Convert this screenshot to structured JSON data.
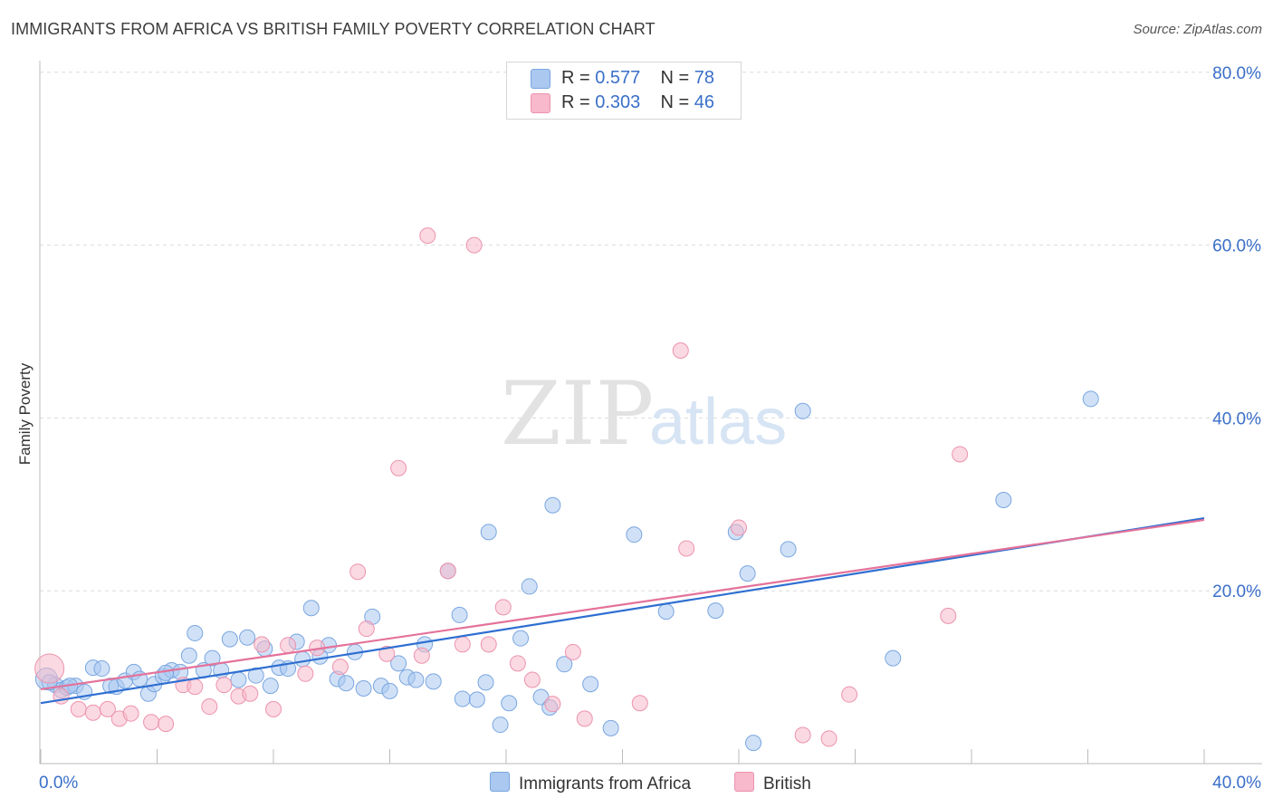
{
  "header": {
    "title": "IMMIGRANTS FROM AFRICA VS BRITISH FAMILY POVERTY CORRELATION CHART",
    "source": "Source: ZipAtlas.com"
  },
  "watermark": {
    "part1": "ZIP",
    "part2": "atlas"
  },
  "legend": {
    "rows": [
      {
        "r_label": "R = ",
        "r_value": "0.577",
        "n_label": "N = ",
        "n_value": "78"
      },
      {
        "r_label": "R = ",
        "r_value": "0.303",
        "n_label": "N = ",
        "n_value": "46"
      }
    ]
  },
  "bottom_legend": {
    "series1": "Immigrants from Africa",
    "series2": "British"
  },
  "colors": {
    "blue_fill": "#aac8f0",
    "blue_stroke": "#7aa6e0",
    "blue_line": "#2f6fd1",
    "pink_fill": "#f7b9cb",
    "pink_stroke": "#ec93ad",
    "pink_line": "#e4729a",
    "tick_text": "#3a6fc9",
    "grid": "#dcdcdc"
  },
  "chart_data": {
    "type": "scatter",
    "title": "IMMIGRANTS FROM AFRICA VS BRITISH FAMILY POVERTY CORRELATION CHART",
    "xlabel": "",
    "ylabel": "Family Poverty",
    "xlim": [
      0,
      40
    ],
    "ylim": [
      0,
      83
    ],
    "x_tick_labels": [
      {
        "value": 0,
        "label": "0.0%"
      },
      {
        "value": 40,
        "label": "40.0%"
      }
    ],
    "y_tick_labels": [
      {
        "value": 20,
        "label": "20.0%"
      },
      {
        "value": 40,
        "label": "40.0%"
      },
      {
        "value": 60,
        "label": "60.0%"
      },
      {
        "value": 80,
        "label": "80.0%"
      }
    ],
    "grid": true,
    "legend_position": "top-center",
    "series": [
      {
        "name": "Immigrants from Africa",
        "R": 0.577,
        "N": 78,
        "trend": [
          [
            0,
            7.0
          ],
          [
            40,
            28.4
          ]
        ],
        "points": [
          [
            0.2,
            9.8
          ],
          [
            0.5,
            9.1
          ],
          [
            0.7,
            8.5
          ],
          [
            0.9,
            8.8
          ],
          [
            1.2,
            9.0
          ],
          [
            1.5,
            8.3
          ],
          [
            1.8,
            11.1
          ],
          [
            2.1,
            11.0
          ],
          [
            2.4,
            9.0
          ],
          [
            2.6,
            8.9
          ],
          [
            2.9,
            9.6
          ],
          [
            3.2,
            10.6
          ],
          [
            3.4,
            9.8
          ],
          [
            3.7,
            8.1
          ],
          [
            3.9,
            9.2
          ],
          [
            4.2,
            10.1
          ],
          [
            4.5,
            10.8
          ],
          [
            4.8,
            10.6
          ],
          [
            5.1,
            12.5
          ],
          [
            5.3,
            15.1
          ],
          [
            5.6,
            10.8
          ],
          [
            5.9,
            12.2
          ],
          [
            6.2,
            10.8
          ],
          [
            6.5,
            14.4
          ],
          [
            6.8,
            9.7
          ],
          [
            7.1,
            14.6
          ],
          [
            7.4,
            10.2
          ],
          [
            7.7,
            13.3
          ],
          [
            7.9,
            9.0
          ],
          [
            8.2,
            11.1
          ],
          [
            8.5,
            11.0
          ],
          [
            8.8,
            14.1
          ],
          [
            9.0,
            12.1
          ],
          [
            9.3,
            18.0
          ],
          [
            9.6,
            12.4
          ],
          [
            9.9,
            13.7
          ],
          [
            10.2,
            9.8
          ],
          [
            10.5,
            9.3
          ],
          [
            10.8,
            12.9
          ],
          [
            11.1,
            8.7
          ],
          [
            11.4,
            17.0
          ],
          [
            11.7,
            9.0
          ],
          [
            12.0,
            8.4
          ],
          [
            12.3,
            11.6
          ],
          [
            12.6,
            10.0
          ],
          [
            12.9,
            9.7
          ],
          [
            13.2,
            13.8
          ],
          [
            13.5,
            9.5
          ],
          [
            14.0,
            22.3
          ],
          [
            14.4,
            17.2
          ],
          [
            14.5,
            7.5
          ],
          [
            15.0,
            7.4
          ],
          [
            15.3,
            9.4
          ],
          [
            15.4,
            26.8
          ],
          [
            15.8,
            4.5
          ],
          [
            16.1,
            7.0
          ],
          [
            16.5,
            14.5
          ],
          [
            16.8,
            20.5
          ],
          [
            17.2,
            7.7
          ],
          [
            17.5,
            6.5
          ],
          [
            17.6,
            29.9
          ],
          [
            18.0,
            11.5
          ],
          [
            18.9,
            9.2
          ],
          [
            19.6,
            4.1
          ],
          [
            20.4,
            26.5
          ],
          [
            21.5,
            17.6
          ],
          [
            23.2,
            17.7
          ],
          [
            23.9,
            26.8
          ],
          [
            24.3,
            22.0
          ],
          [
            24.5,
            2.4
          ],
          [
            25.7,
            24.8
          ],
          [
            26.2,
            40.8
          ],
          [
            29.3,
            12.2
          ],
          [
            33.1,
            30.5
          ],
          [
            36.1,
            42.2
          ],
          [
            0.3,
            9.4
          ],
          [
            1.0,
            9.0
          ],
          [
            4.3,
            10.5
          ]
        ]
      },
      {
        "name": "British",
        "R": 0.303,
        "N": 46,
        "trend": [
          [
            0,
            8.6
          ],
          [
            40,
            28.2
          ]
        ],
        "points": [
          [
            0.3,
            11.0
          ],
          [
            0.7,
            7.8
          ],
          [
            1.3,
            6.3
          ],
          [
            1.8,
            5.9
          ],
          [
            2.3,
            6.3
          ],
          [
            2.7,
            5.2
          ],
          [
            3.1,
            5.8
          ],
          [
            3.8,
            4.8
          ],
          [
            4.3,
            4.6
          ],
          [
            4.9,
            9.1
          ],
          [
            5.3,
            8.9
          ],
          [
            5.8,
            6.6
          ],
          [
            6.3,
            9.1
          ],
          [
            6.8,
            7.8
          ],
          [
            7.2,
            8.1
          ],
          [
            7.6,
            13.8
          ],
          [
            8.0,
            6.3
          ],
          [
            8.5,
            13.7
          ],
          [
            9.1,
            10.4
          ],
          [
            9.5,
            13.4
          ],
          [
            10.3,
            11.2
          ],
          [
            10.9,
            22.2
          ],
          [
            11.2,
            15.6
          ],
          [
            11.9,
            12.7
          ],
          [
            12.3,
            34.2
          ],
          [
            13.1,
            12.5
          ],
          [
            13.3,
            61.1
          ],
          [
            14.0,
            22.3
          ],
          [
            14.5,
            13.8
          ],
          [
            14.9,
            60.0
          ],
          [
            15.4,
            13.8
          ],
          [
            15.9,
            18.1
          ],
          [
            16.4,
            11.6
          ],
          [
            16.9,
            9.7
          ],
          [
            17.6,
            6.9
          ],
          [
            18.3,
            12.9
          ],
          [
            18.7,
            5.2
          ],
          [
            20.6,
            7.0
          ],
          [
            22.0,
            47.8
          ],
          [
            22.2,
            24.9
          ],
          [
            24.0,
            27.3
          ],
          [
            26.2,
            3.3
          ],
          [
            27.1,
            2.9
          ],
          [
            27.8,
            8.0
          ],
          [
            31.2,
            17.1
          ],
          [
            31.6,
            35.8
          ]
        ]
      }
    ]
  }
}
